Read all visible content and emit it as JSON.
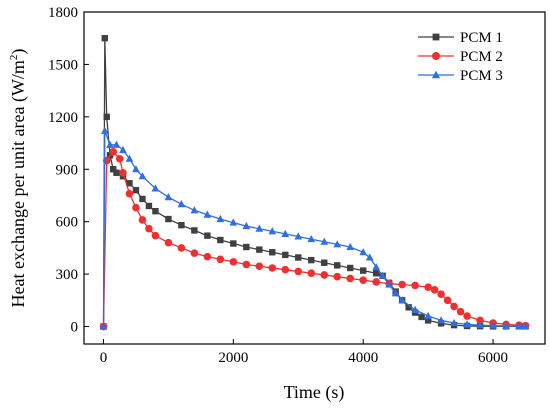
{
  "chart_data": {
    "type": "line",
    "xlabel": "Time (s)",
    "ylabel_main": "Heat exchange per unit area (W/m",
    "ylabel_sup": "2",
    "ylabel_close": ")",
    "xlim": [
      -300,
      6800
    ],
    "ylim": [
      -100,
      1800
    ],
    "x_ticks": [
      0,
      2000,
      4000,
      6000
    ],
    "x_tick_labels": [
      "0",
      "2000",
      "4000",
      "6000"
    ],
    "y_ticks": [
      0,
      300,
      600,
      900,
      1200,
      1500,
      1800
    ],
    "y_tick_labels": [
      "0",
      "300",
      "600",
      "900",
      "1200",
      "1500",
      "1800"
    ],
    "legend_position": "top-right",
    "series": [
      {
        "name": "PCM 1",
        "color": "#404040",
        "marker": "square",
        "x": [
          0,
          20,
          50,
          100,
          150,
          200,
          300,
          400,
          500,
          600,
          700,
          800,
          1000,
          1200,
          1400,
          1600,
          1800,
          2000,
          2200,
          2400,
          2600,
          2800,
          3000,
          3200,
          3400,
          3600,
          3800,
          4000,
          4200,
          4300,
          4400,
          4500,
          4600,
          4700,
          4800,
          4900,
          5000,
          5200,
          5400,
          5600,
          5800,
          6000,
          6200,
          6400,
          6500
        ],
        "y": [
          0,
          1650,
          1200,
          980,
          900,
          880,
          860,
          820,
          780,
          730,
          690,
          660,
          615,
          580,
          550,
          520,
          495,
          475,
          455,
          440,
          425,
          410,
          395,
          380,
          365,
          350,
          335,
          320,
          305,
          290,
          250,
          200,
          150,
          110,
          80,
          55,
          35,
          18,
          8,
          3,
          2,
          1,
          1,
          1,
          1
        ]
      },
      {
        "name": "PCM 2",
        "color": "#ee3030",
        "marker": "circle",
        "x": [
          0,
          50,
          150,
          250,
          300,
          400,
          500,
          600,
          700,
          800,
          1000,
          1200,
          1400,
          1600,
          1800,
          2000,
          2200,
          2400,
          2600,
          2800,
          3000,
          3200,
          3400,
          3600,
          3800,
          4000,
          4200,
          4400,
          4600,
          4800,
          5000,
          5100,
          5200,
          5300,
          5400,
          5500,
          5600,
          5800,
          6000,
          6200,
          6400,
          6500
        ],
        "y": [
          0,
          950,
          1000,
          960,
          880,
          760,
          680,
          610,
          560,
          520,
          480,
          450,
          420,
          400,
          385,
          370,
          355,
          345,
          335,
          325,
          315,
          305,
          295,
          285,
          275,
          265,
          255,
          245,
          240,
          235,
          225,
          210,
          185,
          150,
          115,
          85,
          60,
          35,
          20,
          12,
          8,
          5
        ]
      },
      {
        "name": "PCM 3",
        "color": "#2f6fe0",
        "marker": "triangle",
        "x": [
          0,
          20,
          100,
          200,
          300,
          400,
          500,
          600,
          800,
          1000,
          1200,
          1400,
          1600,
          1800,
          2000,
          2200,
          2400,
          2600,
          2800,
          3000,
          3200,
          3400,
          3600,
          3800,
          4000,
          4100,
          4200,
          4300,
          4400,
          4500,
          4600,
          4800,
          5000,
          5200,
          5400,
          5600,
          5800,
          6000,
          6200,
          6400,
          6500
        ],
        "y": [
          0,
          1120,
          1040,
          1040,
          1010,
          960,
          900,
          860,
          790,
          740,
          700,
          665,
          640,
          615,
          595,
          575,
          560,
          545,
          530,
          515,
          500,
          485,
          470,
          455,
          425,
          395,
          340,
          290,
          240,
          190,
          150,
          95,
          60,
          35,
          20,
          12,
          8,
          5,
          3,
          2,
          1
        ]
      }
    ]
  }
}
